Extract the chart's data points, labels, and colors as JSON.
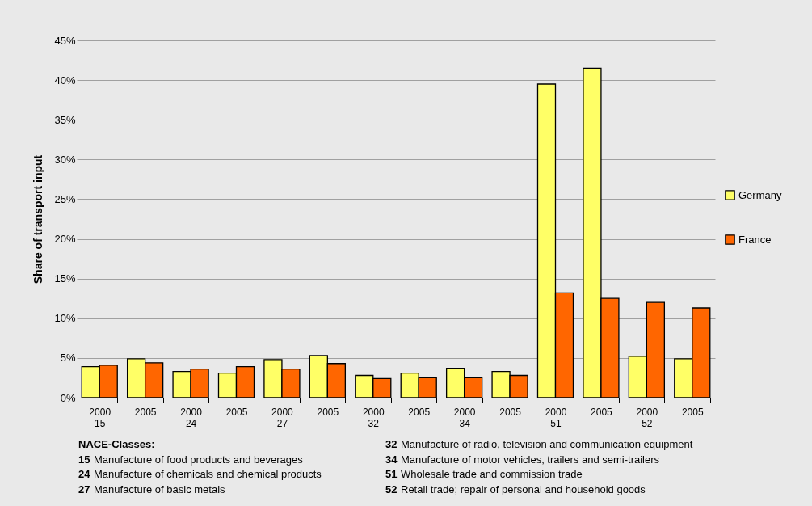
{
  "chart_data": {
    "type": "bar",
    "ylabel": "Share of transport input",
    "categories": [
      "2000\n15",
      "2005",
      "2000\n24",
      "2005",
      "2000\n27",
      "2005",
      "2000\n32",
      "2005",
      "2000\n34",
      "2005",
      "2000\n51",
      "2005",
      "2000\n52",
      "2005"
    ],
    "series": [
      {
        "name": "Germany",
        "color": "#ffff66",
        "values": [
          3.9,
          4.9,
          3.3,
          3.1,
          4.8,
          5.3,
          2.8,
          3.1,
          3.7,
          3.3,
          39.5,
          41.5,
          5.2,
          4.9
        ]
      },
      {
        "name": "France",
        "color": "#ff6600",
        "values": [
          4.1,
          4.4,
          3.6,
          3.9,
          3.6,
          4.3,
          2.4,
          2.5,
          2.5,
          2.8,
          13.2,
          12.5,
          12.0,
          11.3
        ]
      }
    ],
    "ylim": [
      0,
      45
    ],
    "yticks": [
      {
        "value": 0,
        "label": "0%"
      },
      {
        "value": 5,
        "label": "5%"
      },
      {
        "value": 10,
        "label": "10%"
      },
      {
        "value": 15,
        "label": "15%"
      },
      {
        "value": 20,
        "label": "20%"
      },
      {
        "value": 25,
        "label": "25%"
      },
      {
        "value": 30,
        "label": "30%"
      },
      {
        "value": 35,
        "label": "35%"
      },
      {
        "value": 40,
        "label": "40%"
      },
      {
        "value": 45,
        "label": "45%"
      }
    ],
    "grid": "y",
    "legend": "right",
    "annotations": [
      "NACE-Classes:",
      "15 Manufacture of food products and beverages",
      "24 Manufacture of chemicals and chemical products",
      "27 Manufacture of basic metals",
      "32 Manufacture of radio, television and communication equipment",
      "34 Manufacture of motor vehicles, trailers and semi-trailers",
      "51 Wholesale trade and commission trade",
      "52 Retail trade; repair of personal and household goods"
    ]
  }
}
